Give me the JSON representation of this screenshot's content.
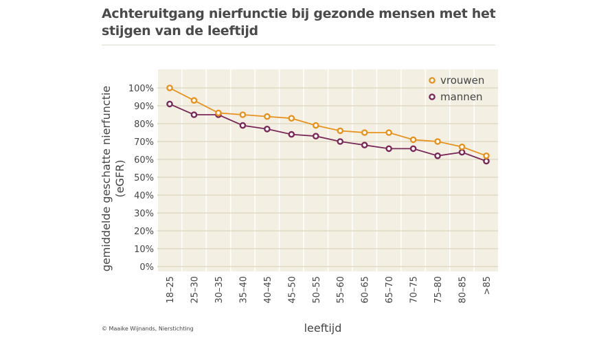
{
  "title": "Achteruitgang nierfunctie bij gezonde mensen met het stijgen van de leeftijd",
  "credit": "© Maaike Wijnands, Niersstichting",
  "chart_data": {
    "type": "line",
    "title": "Achteruitgang nierfunctie bij gezonde mensen met het stijgen van de leeftijd",
    "xlabel": "leeftijd",
    "ylabel": "gemiddelde geschatte nierfunctie (eGFR)",
    "ylim": [
      0,
      100
    ],
    "yticks": [
      "0%",
      "10%",
      "20%",
      "30%",
      "40%",
      "50%",
      "60%",
      "70%",
      "80%",
      "90%",
      "100%"
    ],
    "grid": true,
    "legend": "top-right",
    "categories": [
      "18–25",
      "25–30",
      "30–35",
      "35–40",
      "40–45",
      "45–50",
      "50–55",
      "55–60",
      "60–65",
      "65–70",
      "70–75",
      "75–80",
      "80–85",
      ">85"
    ],
    "series": [
      {
        "name": "vrouwen",
        "color": "#e8921e",
        "values": [
          100,
          93,
          86,
          85,
          84,
          83,
          79,
          76,
          75,
          75,
          71,
          70,
          67,
          62
        ]
      },
      {
        "name": "mannen",
        "color": "#7a2858",
        "values": [
          91,
          85,
          85,
          79,
          77,
          74,
          73,
          70,
          68,
          66,
          66,
          62,
          64,
          59
        ]
      }
    ]
  }
}
